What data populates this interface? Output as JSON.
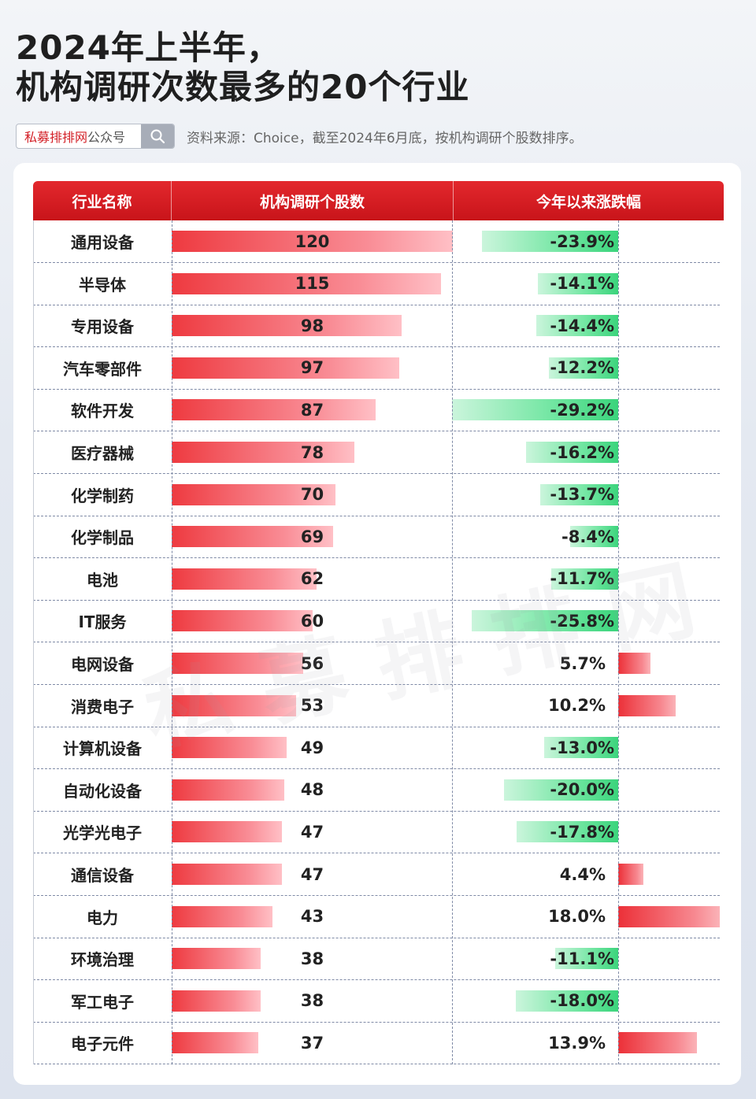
{
  "title_line1": "2024年上半年，",
  "title_line2": "机构调研次数最多的20个行业",
  "brand": {
    "red": "私募排排网",
    "rest": "公众号"
  },
  "source": "资料来源：Choice，截至2024年6月底，按机构调研个股数排序。",
  "watermark": "私募排排网",
  "colors": {
    "header_red": "#d81e24",
    "bar_red": "#ee3a40",
    "bar_green": "#3bd47c"
  },
  "chart_data": {
    "type": "table",
    "columns": [
      "行业名称",
      "机构调研个股数",
      "今年以来涨跌幅"
    ],
    "rows": [
      {
        "name": "通用设备",
        "count": 120,
        "change": -23.9,
        "change_label": "-23.9%"
      },
      {
        "name": "半导体",
        "count": 115,
        "change": -14.1,
        "change_label": "-14.1%"
      },
      {
        "name": "专用设备",
        "count": 98,
        "change": -14.4,
        "change_label": "-14.4%"
      },
      {
        "name": "汽车零部件",
        "count": 97,
        "change": -12.2,
        "change_label": "-12.2%"
      },
      {
        "name": "软件开发",
        "count": 87,
        "change": -29.2,
        "change_label": "-29.2%"
      },
      {
        "name": "医疗器械",
        "count": 78,
        "change": -16.2,
        "change_label": "-16.2%"
      },
      {
        "name": "化学制药",
        "count": 70,
        "change": -13.7,
        "change_label": "-13.7%"
      },
      {
        "name": "化学制品",
        "count": 69,
        "change": -8.4,
        "change_label": "-8.4%"
      },
      {
        "name": "电池",
        "count": 62,
        "change": -11.7,
        "change_label": "-11.7%"
      },
      {
        "name": "IT服务",
        "count": 60,
        "change": -25.8,
        "change_label": "-25.8%"
      },
      {
        "name": "电网设备",
        "count": 56,
        "change": 5.7,
        "change_label": "5.7%"
      },
      {
        "name": "消费电子",
        "count": 53,
        "change": 10.2,
        "change_label": "10.2%"
      },
      {
        "name": "计算机设备",
        "count": 49,
        "change": -13.0,
        "change_label": "-13.0%"
      },
      {
        "name": "自动化设备",
        "count": 48,
        "change": -20.0,
        "change_label": "-20.0%"
      },
      {
        "name": "光学光电子",
        "count": 47,
        "change": -17.8,
        "change_label": "-17.8%"
      },
      {
        "name": "通信设备",
        "count": 47,
        "change": 4.4,
        "change_label": "4.4%"
      },
      {
        "name": "电力",
        "count": 43,
        "change": 18.0,
        "change_label": "18.0%"
      },
      {
        "name": "环境治理",
        "count": 38,
        "change": -11.1,
        "change_label": "-11.1%"
      },
      {
        "name": "军工电子",
        "count": 38,
        "change": -18.0,
        "change_label": "-18.0%"
      },
      {
        "name": "电子元件",
        "count": 37,
        "change": 13.9,
        "change_label": "13.9%"
      }
    ]
  }
}
